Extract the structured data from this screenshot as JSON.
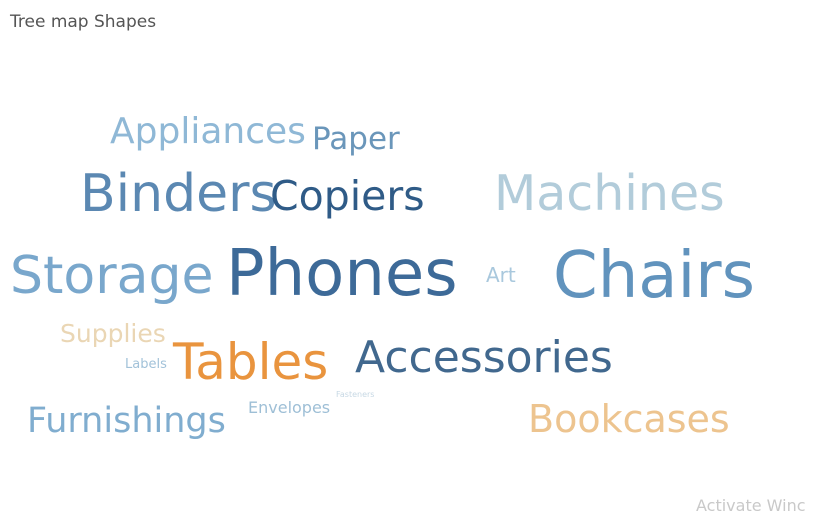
{
  "title": "Tree map Shapes",
  "watermark": "Activate Winc",
  "chart_data": {
    "type": "word-cloud",
    "title": "Tree map Shapes",
    "words": [
      {
        "text": "Appliances",
        "color": "#8fb8d6"
      },
      {
        "text": "Paper",
        "color": "#6a96ba"
      },
      {
        "text": "Binders",
        "color": "#5b88b2"
      },
      {
        "text": "Copiers",
        "color": "#2f5b87"
      },
      {
        "text": "Machines",
        "color": "#b2ccda"
      },
      {
        "text": "Storage",
        "color": "#79a7cc"
      },
      {
        "text": "Phones",
        "color": "#3d6a98"
      },
      {
        "text": "Art",
        "color": "#a9c8dd"
      },
      {
        "text": "Chairs",
        "color": "#6193bd"
      },
      {
        "text": "Supplies",
        "color": "#ead6b4"
      },
      {
        "text": "Labels",
        "color": "#a2c2d9"
      },
      {
        "text": "Tables",
        "color": "#e9943e"
      },
      {
        "text": "Accessories",
        "color": "#41688e"
      },
      {
        "text": "Fasteners",
        "color": "#c7d8e4"
      },
      {
        "text": "Envelopes",
        "color": "#9ebfd6"
      },
      {
        "text": "Furnishings",
        "color": "#80adcf"
      },
      {
        "text": "Bookcases",
        "color": "#edc48f"
      }
    ]
  }
}
